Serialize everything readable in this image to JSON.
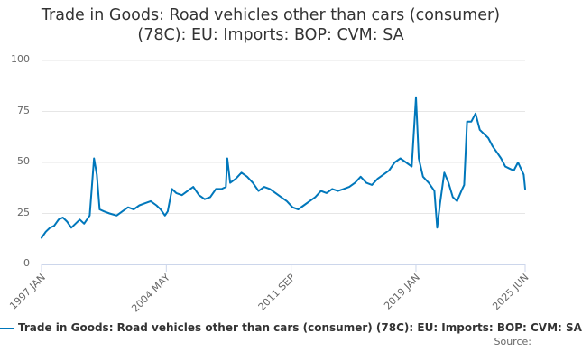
{
  "chart_data": {
    "type": "line",
    "title_line1": "Trade in Goods: Road vehicles other than cars (consumer)",
    "title_line2": "(78C): EU: Imports: BOP: CVM: SA",
    "xlabel": "",
    "ylabel": "",
    "ylim": [
      0,
      100
    ],
    "yticks": [
      0,
      25,
      50,
      75,
      100
    ],
    "xticks": [
      "1997 JAN",
      "2004 MAY",
      "2011 SEP",
      "2019 JAN",
      "2025 JUN"
    ],
    "grid": true,
    "legend": "bottom",
    "series": [
      {
        "name": "Trade in Goods: Road vehicles other than cars (consumer) (78C): EU: Imports: BOP: CVM: SA",
        "color": "#0077bb",
        "points": [
          [
            "1997-01",
            13
          ],
          [
            "1997-04",
            16
          ],
          [
            "1997-07",
            18
          ],
          [
            "1997-10",
            19
          ],
          [
            "1998-01",
            22
          ],
          [
            "1998-04",
            23
          ],
          [
            "1998-07",
            21
          ],
          [
            "1998-10",
            18
          ],
          [
            "1999-01",
            20
          ],
          [
            "1999-04",
            22
          ],
          [
            "1999-07",
            20
          ],
          [
            "1999-11",
            24
          ],
          [
            "2000-02",
            52
          ],
          [
            "2000-04",
            44
          ],
          [
            "2000-06",
            27
          ],
          [
            "2000-09",
            26
          ],
          [
            "2001-01",
            25
          ],
          [
            "2001-06",
            24
          ],
          [
            "2001-10",
            26
          ],
          [
            "2002-02",
            28
          ],
          [
            "2002-06",
            27
          ],
          [
            "2002-10",
            29
          ],
          [
            "2003-02",
            30
          ],
          [
            "2003-06",
            31
          ],
          [
            "2003-10",
            29
          ],
          [
            "2004-01",
            27
          ],
          [
            "2004-04",
            24
          ],
          [
            "2004-06",
            26
          ],
          [
            "2004-09",
            37
          ],
          [
            "2004-12",
            35
          ],
          [
            "2005-04",
            34
          ],
          [
            "2005-08",
            36
          ],
          [
            "2005-12",
            38
          ],
          [
            "2006-04",
            34
          ],
          [
            "2006-08",
            32
          ],
          [
            "2006-12",
            33
          ],
          [
            "2007-04",
            37
          ],
          [
            "2007-08",
            37
          ],
          [
            "2007-11",
            38
          ],
          [
            "2007-12",
            52
          ],
          [
            "2008-02",
            40
          ],
          [
            "2008-06",
            42
          ],
          [
            "2008-10",
            45
          ],
          [
            "2009-02",
            43
          ],
          [
            "2009-06",
            40
          ],
          [
            "2009-10",
            36
          ],
          [
            "2010-02",
            38
          ],
          [
            "2010-06",
            37
          ],
          [
            "2010-10",
            35
          ],
          [
            "2011-02",
            33
          ],
          [
            "2011-06",
            31
          ],
          [
            "2011-10",
            28
          ],
          [
            "2012-02",
            27
          ],
          [
            "2012-06",
            29
          ],
          [
            "2012-10",
            31
          ],
          [
            "2013-02",
            33
          ],
          [
            "2013-06",
            36
          ],
          [
            "2013-10",
            35
          ],
          [
            "2014-02",
            37
          ],
          [
            "2014-06",
            36
          ],
          [
            "2014-10",
            37
          ],
          [
            "2015-02",
            38
          ],
          [
            "2015-06",
            40
          ],
          [
            "2015-10",
            43
          ],
          [
            "2016-02",
            40
          ],
          [
            "2016-06",
            39
          ],
          [
            "2016-10",
            42
          ],
          [
            "2017-02",
            44
          ],
          [
            "2017-06",
            46
          ],
          [
            "2017-10",
            50
          ],
          [
            "2018-02",
            52
          ],
          [
            "2018-06",
            50
          ],
          [
            "2018-10",
            48
          ],
          [
            "2019-01",
            82
          ],
          [
            "2019-03",
            52
          ],
          [
            "2019-06",
            43
          ],
          [
            "2019-10",
            40
          ],
          [
            "2020-02",
            36
          ],
          [
            "2020-04",
            18
          ],
          [
            "2020-06",
            30
          ],
          [
            "2020-09",
            45
          ],
          [
            "2020-12",
            40
          ],
          [
            "2021-03",
            33
          ],
          [
            "2021-06",
            31
          ],
          [
            "2021-09",
            36
          ],
          [
            "2021-11",
            39
          ],
          [
            "2022-01",
            70
          ],
          [
            "2022-04",
            70
          ],
          [
            "2022-07",
            74
          ],
          [
            "2022-10",
            66
          ],
          [
            "2023-01",
            64
          ],
          [
            "2023-04",
            62
          ],
          [
            "2023-07",
            58
          ],
          [
            "2023-10",
            55
          ],
          [
            "2024-01",
            52
          ],
          [
            "2024-04",
            48
          ],
          [
            "2024-07",
            47
          ],
          [
            "2024-10",
            46
          ],
          [
            "2025-01",
            50
          ],
          [
            "2025-03",
            47
          ],
          [
            "2025-05",
            44
          ],
          [
            "2025-06",
            37
          ]
        ]
      }
    ],
    "source_label": "Source:"
  }
}
